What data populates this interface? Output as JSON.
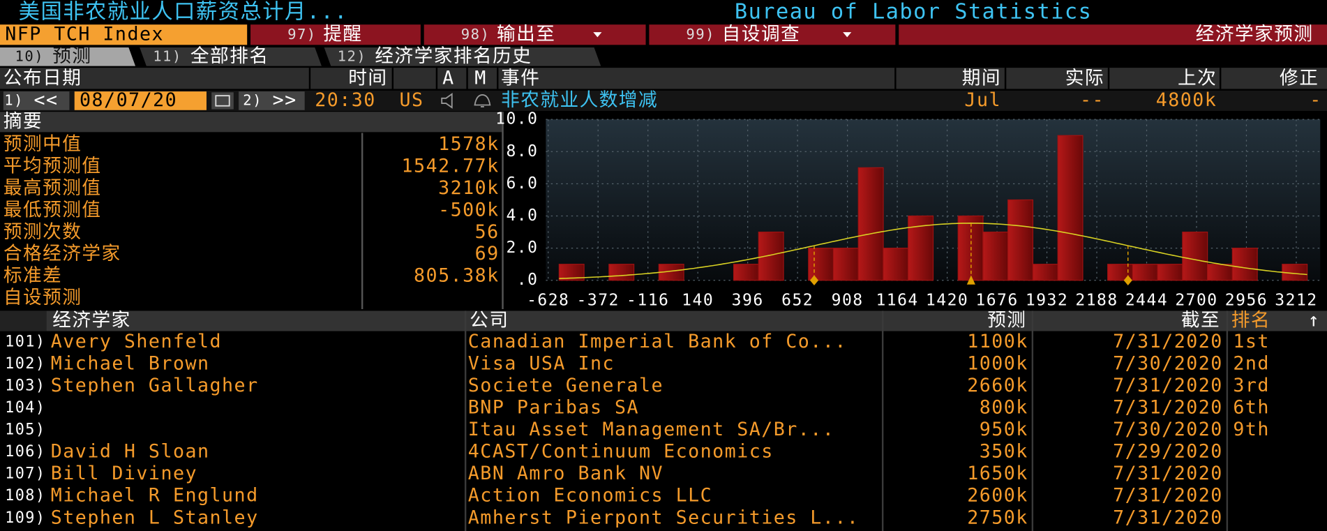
{
  "header": {
    "title": "美国非农就业人口薪资总计月...",
    "source": "Bureau of Labor Statistics"
  },
  "toolbar": {
    "ticker": "NFP TCH Index",
    "buttons": [
      {
        "num": "97)",
        "label": "提醒"
      },
      {
        "num": "98)",
        "label": "输出至",
        "dropdown": true
      },
      {
        "num": "99)",
        "label": "自设调查",
        "dropdown": true
      }
    ],
    "title": "经济学家预测"
  },
  "tabs": [
    {
      "num": "10)",
      "label": "预测",
      "active": true
    },
    {
      "num": "11)",
      "label": "全部排名"
    },
    {
      "num": "12)",
      "label": "经济学家排名历史"
    }
  ],
  "event": {
    "headers": [
      "公布日期",
      "时间",
      "A",
      "M",
      "事件",
      "期间",
      "实际",
      "上次",
      "修正"
    ],
    "prev": {
      "num": "1)",
      "label": "<<"
    },
    "date": "08/07/20",
    "next": {
      "num": "2)",
      "label": ">>"
    },
    "time": "20:30",
    "region": "US",
    "name": "非农就业人数增减",
    "period": "Jul",
    "actual": "--",
    "prior": "4800k",
    "revised": "-"
  },
  "summary": {
    "title": "摘要",
    "rows": [
      {
        "label": "预测中值",
        "value": "1578k"
      },
      {
        "label": "平均预测值",
        "value": "1542.77k"
      },
      {
        "label": "最高预测值",
        "value": "3210k"
      },
      {
        "label": "最低预测值",
        "value": "-500k"
      },
      {
        "label": "预测次数",
        "value": "56"
      },
      {
        "label": "合格经济学家",
        "value": "69"
      },
      {
        "label": "标准差",
        "value": "805.38k"
      },
      {
        "label": "自设预测"
      }
    ]
  },
  "chart_data": {
    "type": "histogram",
    "bins": [
      -572,
      -444,
      -316,
      -188,
      -60,
      68,
      196,
      324,
      452,
      580,
      708,
      836,
      964,
      1092,
      1220,
      1348,
      1476,
      1604,
      1732,
      1860,
      1988,
      2116,
      2244,
      2372,
      2500,
      2628,
      2756,
      2884,
      3012,
      3140,
      3268
    ],
    "counts": [
      1,
      0,
      1,
      0,
      1,
      0,
      0,
      1,
      3,
      0,
      2,
      2,
      7,
      2,
      4,
      0,
      4,
      3,
      5,
      1,
      9,
      0,
      1,
      1,
      1,
      3,
      1,
      2,
      0,
      1
    ],
    "color": "#9e1212",
    "curve_color": "#d9d223",
    "mean": 1542.77,
    "std": 805.38,
    "xlim": [
      -640,
      3335
    ],
    "xticks": [
      -628,
      -372,
      -116,
      140,
      396,
      652,
      908,
      1164,
      1420,
      1676,
      1932,
      2188,
      2444,
      2700,
      2956,
      3212
    ],
    "ylim": [
      0,
      10
    ],
    "yticks": [
      {
        "value": 0,
        "label": ".0"
      },
      {
        "value": 2,
        "label": "2.0"
      },
      {
        "value": 4,
        "label": "4.0"
      },
      {
        "value": 6,
        "label": "6.0"
      },
      {
        "value": 8,
        "label": "8.0"
      },
      {
        "value": 10,
        "label": "10.0"
      }
    ],
    "grid": true
  },
  "table": {
    "headers": [
      "经济学家",
      "公司",
      "预测",
      "截至",
      "排名"
    ],
    "sort_icon": "↑",
    "rows": [
      {
        "num": "101)",
        "economist": "Avery Shenfeld",
        "firm": "Canadian Imperial Bank of Co...",
        "forecast": "1100k",
        "as_of": "7/31/2020",
        "rank": "1st"
      },
      {
        "num": "102)",
        "economist": "Michael Brown",
        "firm": "Visa USA Inc",
        "forecast": "1000k",
        "as_of": "7/30/2020",
        "rank": "2nd"
      },
      {
        "num": "103)",
        "economist": "Stephen Gallagher",
        "firm": "Societe Generale",
        "forecast": "2660k",
        "as_of": "7/31/2020",
        "rank": "3rd"
      },
      {
        "num": "104)",
        "firm": "BNP Paribas SA",
        "forecast": "800k",
        "as_of": "7/31/2020",
        "rank": "6th"
      },
      {
        "num": "105)",
        "firm": "Itau Asset Management SA/Br...",
        "forecast": "950k",
        "as_of": "7/30/2020",
        "rank": "9th"
      },
      {
        "num": "106)",
        "economist": "David H Sloan",
        "firm": "4CAST/Continuum Economics",
        "forecast": "350k",
        "as_of": "7/29/2020"
      },
      {
        "num": "107)",
        "economist": "Bill Diviney",
        "firm": "ABN Amro Bank NV",
        "forecast": "1650k",
        "as_of": "7/31/2020"
      },
      {
        "num": "108)",
        "economist": "Michael R Englund",
        "firm": "Action Economics LLC",
        "forecast": "2600k",
        "as_of": "7/31/2020"
      },
      {
        "num": "109)",
        "economist": "Stephen L Stanley",
        "firm": "Amherst Pierpont Securities L...",
        "forecast": "2750k",
        "as_of": "7/31/2020"
      }
    ]
  }
}
